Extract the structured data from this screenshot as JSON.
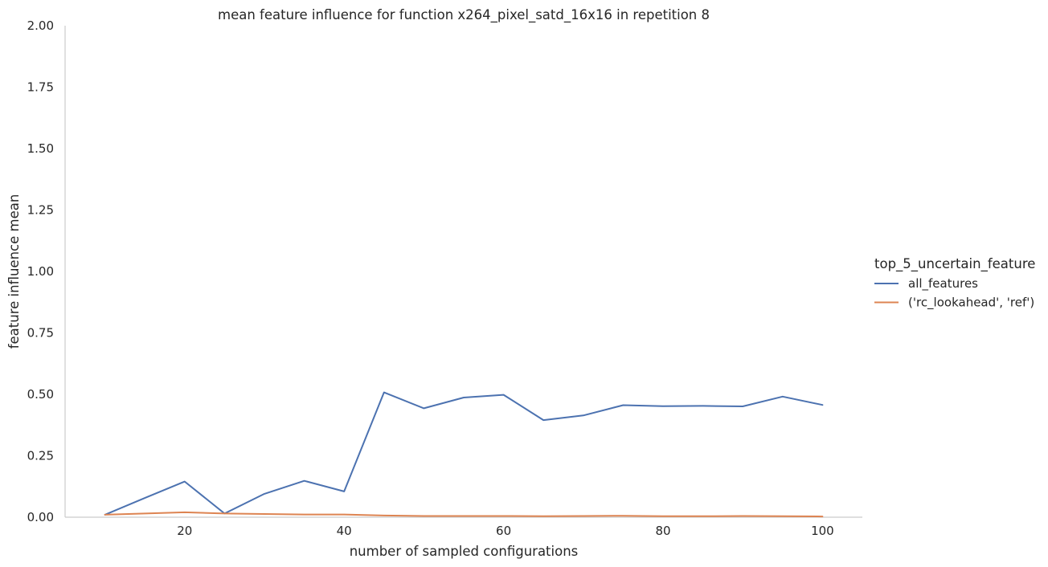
{
  "chart_data": {
    "type": "line",
    "title": "mean feature influence for function x264_pixel_satd_16x16 in repetition 8",
    "xlabel": "number of sampled configurations",
    "ylabel": "feature influence mean",
    "xlim": [
      5,
      105
    ],
    "ylim": [
      0,
      2.0
    ],
    "xticks": [
      20,
      40,
      60,
      80,
      100
    ],
    "yticks": [
      0.0,
      0.25,
      0.5,
      0.75,
      1.0,
      1.25,
      1.5,
      1.75,
      2.0
    ],
    "ytick_labels": [
      "0.00",
      "0.25",
      "0.50",
      "0.75",
      "1.00",
      "1.25",
      "1.50",
      "1.75",
      "2.00"
    ],
    "xtick_labels": [
      "20",
      "40",
      "60",
      "80",
      "100"
    ],
    "grid": false,
    "legend": {
      "title": "top_5_uncertain_feature",
      "placement": "right"
    },
    "x": [
      10,
      15,
      20,
      25,
      30,
      35,
      40,
      45,
      50,
      55,
      60,
      65,
      70,
      75,
      80,
      85,
      90,
      95,
      100
    ],
    "series": [
      {
        "name": "all_features",
        "color": "#4c72b0",
        "values": [
          0.01,
          0.078,
          0.145,
          0.015,
          0.095,
          0.148,
          0.105,
          0.508,
          0.443,
          0.487,
          0.498,
          0.395,
          0.414,
          0.456,
          0.452,
          0.453,
          0.451,
          0.491,
          0.457
        ]
      },
      {
        "name": "('rc_lookahead', 'ref')",
        "color": "#dd8452",
        "values": [
          0.01,
          0.015,
          0.02,
          0.015,
          0.013,
          0.011,
          0.011,
          0.007,
          0.005,
          0.005,
          0.005,
          0.004,
          0.005,
          0.006,
          0.004,
          0.004,
          0.005,
          0.004,
          0.003
        ]
      }
    ]
  }
}
